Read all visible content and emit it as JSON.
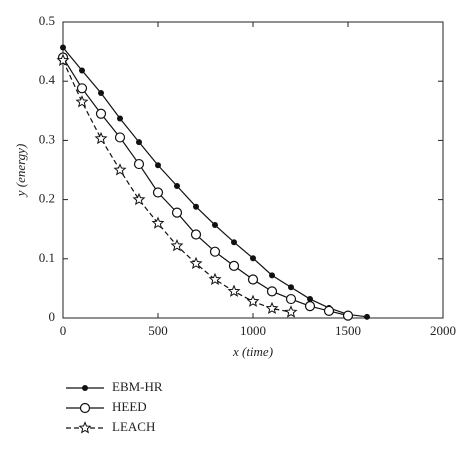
{
  "chart_data": {
    "type": "line",
    "x_label": "x (time)",
    "y_label": "y (energy)",
    "xlim": [
      0,
      2000
    ],
    "xticks": [
      0,
      500,
      1000,
      1500,
      2000
    ],
    "ylim": [
      0,
      0.5
    ],
    "yticks": [
      0,
      0.1,
      0.2,
      0.3,
      0.4,
      0.5
    ],
    "series": [
      {
        "name": "EBM-HR",
        "color": "#111111",
        "marker": "filled-circle",
        "dash": "solid",
        "x": [
          0,
          100,
          200,
          300,
          400,
          500,
          600,
          700,
          800,
          900,
          1000,
          1100,
          1200,
          1300,
          1400,
          1500,
          1600
        ],
        "values": [
          0.457,
          0.418,
          0.38,
          0.337,
          0.297,
          0.258,
          0.223,
          0.188,
          0.157,
          0.128,
          0.101,
          0.072,
          0.052,
          0.032,
          0.017,
          0.006,
          0.002
        ]
      },
      {
        "name": "HEED",
        "color": "#111111",
        "marker": "open-circle",
        "dash": "solid",
        "x": [
          0,
          100,
          200,
          300,
          400,
          500,
          600,
          700,
          800,
          900,
          1000,
          1100,
          1200,
          1300,
          1400,
          1500
        ],
        "values": [
          0.44,
          0.388,
          0.345,
          0.305,
          0.26,
          0.212,
          0.178,
          0.141,
          0.112,
          0.088,
          0.065,
          0.045,
          0.032,
          0.02,
          0.012,
          0.004
        ]
      },
      {
        "name": "LEACH",
        "color": "#111111",
        "marker": "star",
        "dash": "dashed",
        "x": [
          0,
          100,
          200,
          300,
          400,
          500,
          600,
          700,
          800,
          900,
          1000,
          1100,
          1200
        ],
        "values": [
          0.435,
          0.365,
          0.303,
          0.25,
          0.2,
          0.16,
          0.122,
          0.092,
          0.065,
          0.045,
          0.028,
          0.016,
          0.01
        ]
      }
    ]
  }
}
